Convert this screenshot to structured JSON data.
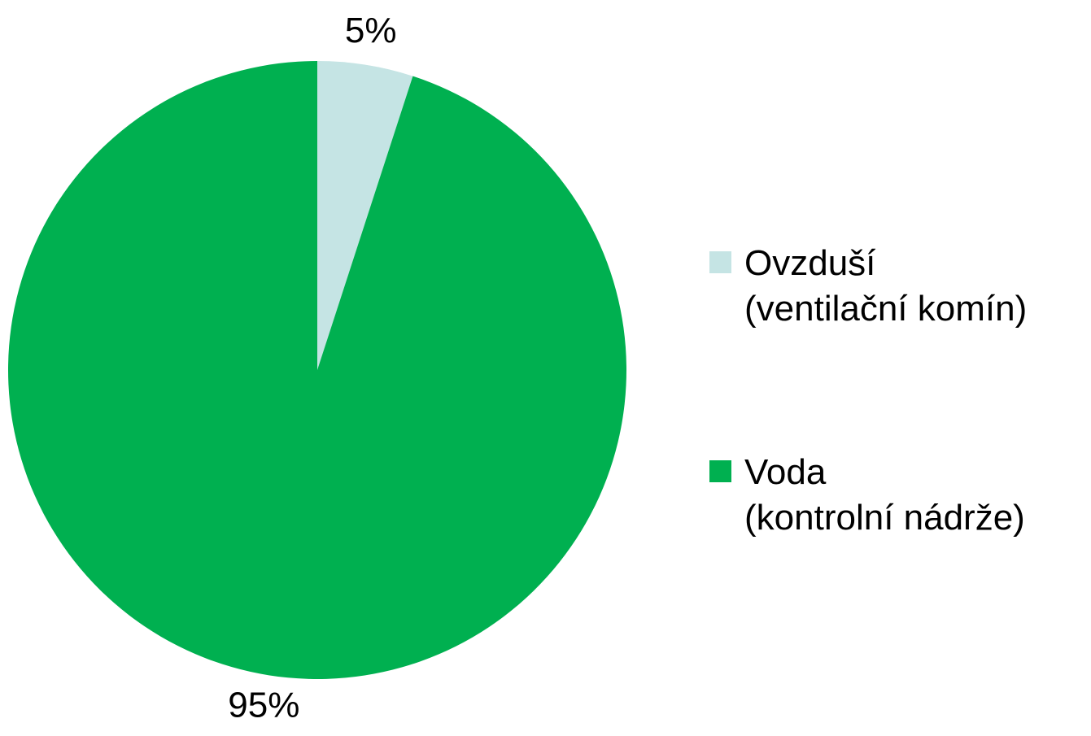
{
  "chart_data": {
    "type": "pie",
    "categories": [
      "Ovzduší\n(ventilační komín)",
      "Voda\n(kontrolní nádrže)"
    ],
    "values": [
      5,
      95
    ],
    "value_labels": [
      "5%",
      "95%"
    ],
    "colors": [
      "#c5e4e4",
      "#00b050"
    ],
    "legend": "right"
  }
}
